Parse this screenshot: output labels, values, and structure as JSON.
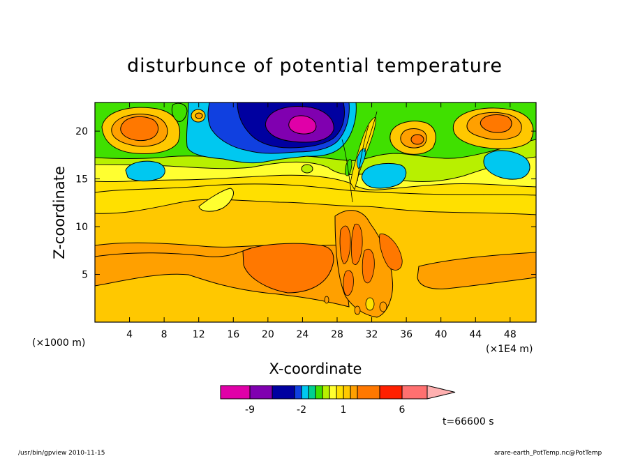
{
  "title": "disturbunce of potential temperature",
  "xlabel": "X-coordinate",
  "ylabel": "Z-coordinate",
  "x_unit_left": "(×1000 m)",
  "x_unit_right": "(×1E4 m)",
  "time_label": "t=66600 s",
  "footer_left": "/usr/bin/gpview  2010-11-15",
  "footer_right": "arare-earth_PotTemp.nc@PotTemp",
  "colorbar_labels": [
    {
      "text": "-9",
      "at": -9
    },
    {
      "text": "-2",
      "at": -2
    },
    {
      "text": "1",
      "at": 1
    },
    {
      "text": "6",
      "at": 6
    }
  ],
  "chart_data": {
    "type": "heatmap",
    "title": "disturbunce of potential temperature",
    "xlabel": "X-coordinate",
    "ylabel": "Z-coordinate",
    "xlim": [
      0,
      51
    ],
    "ylim": [
      0,
      23
    ],
    "xticks": [
      4,
      8,
      12,
      16,
      20,
      24,
      28,
      32,
      36,
      40,
      44,
      48
    ],
    "yticks": [
      5,
      10,
      15,
      20
    ],
    "colorbar": {
      "levels": [
        -12,
        -9,
        -6,
        -4,
        -2,
        -1.5,
        -1,
        -0.5,
        0,
        0.5,
        1,
        1.5,
        2,
        4,
        6,
        9,
        12
      ],
      "colors": [
        "#e000a8",
        "#8000b0",
        "#0000a0",
        "#1040e0",
        "#00c8f0",
        "#00d090",
        "#40e000",
        "#b8f000",
        "#ffff30",
        "#ffe000",
        "#ffc800",
        "#ffa000",
        "#ff7800",
        "#ff2000",
        "#ff7070",
        "#ffb0b0"
      ],
      "extend": "max"
    },
    "features": [
      {
        "x": 22.5,
        "z": 20.5,
        "value": -12
      },
      {
        "x": 23.8,
        "z": 20.8,
        "value": -10
      },
      {
        "x": 5.2,
        "z": 20.2,
        "value": 4
      },
      {
        "x": 45.8,
        "z": 20.1,
        "value": 4
      },
      {
        "x": 37.5,
        "z": 18.6,
        "value": 4
      },
      {
        "x": 21.5,
        "z": 6.2,
        "value": 4
      },
      {
        "x": 8,
        "z": 16.3,
        "value": -2
      },
      {
        "x": 33,
        "z": 15.5,
        "value": -2
      },
      {
        "x": 48,
        "z": 16.5,
        "value": -2
      }
    ]
  }
}
